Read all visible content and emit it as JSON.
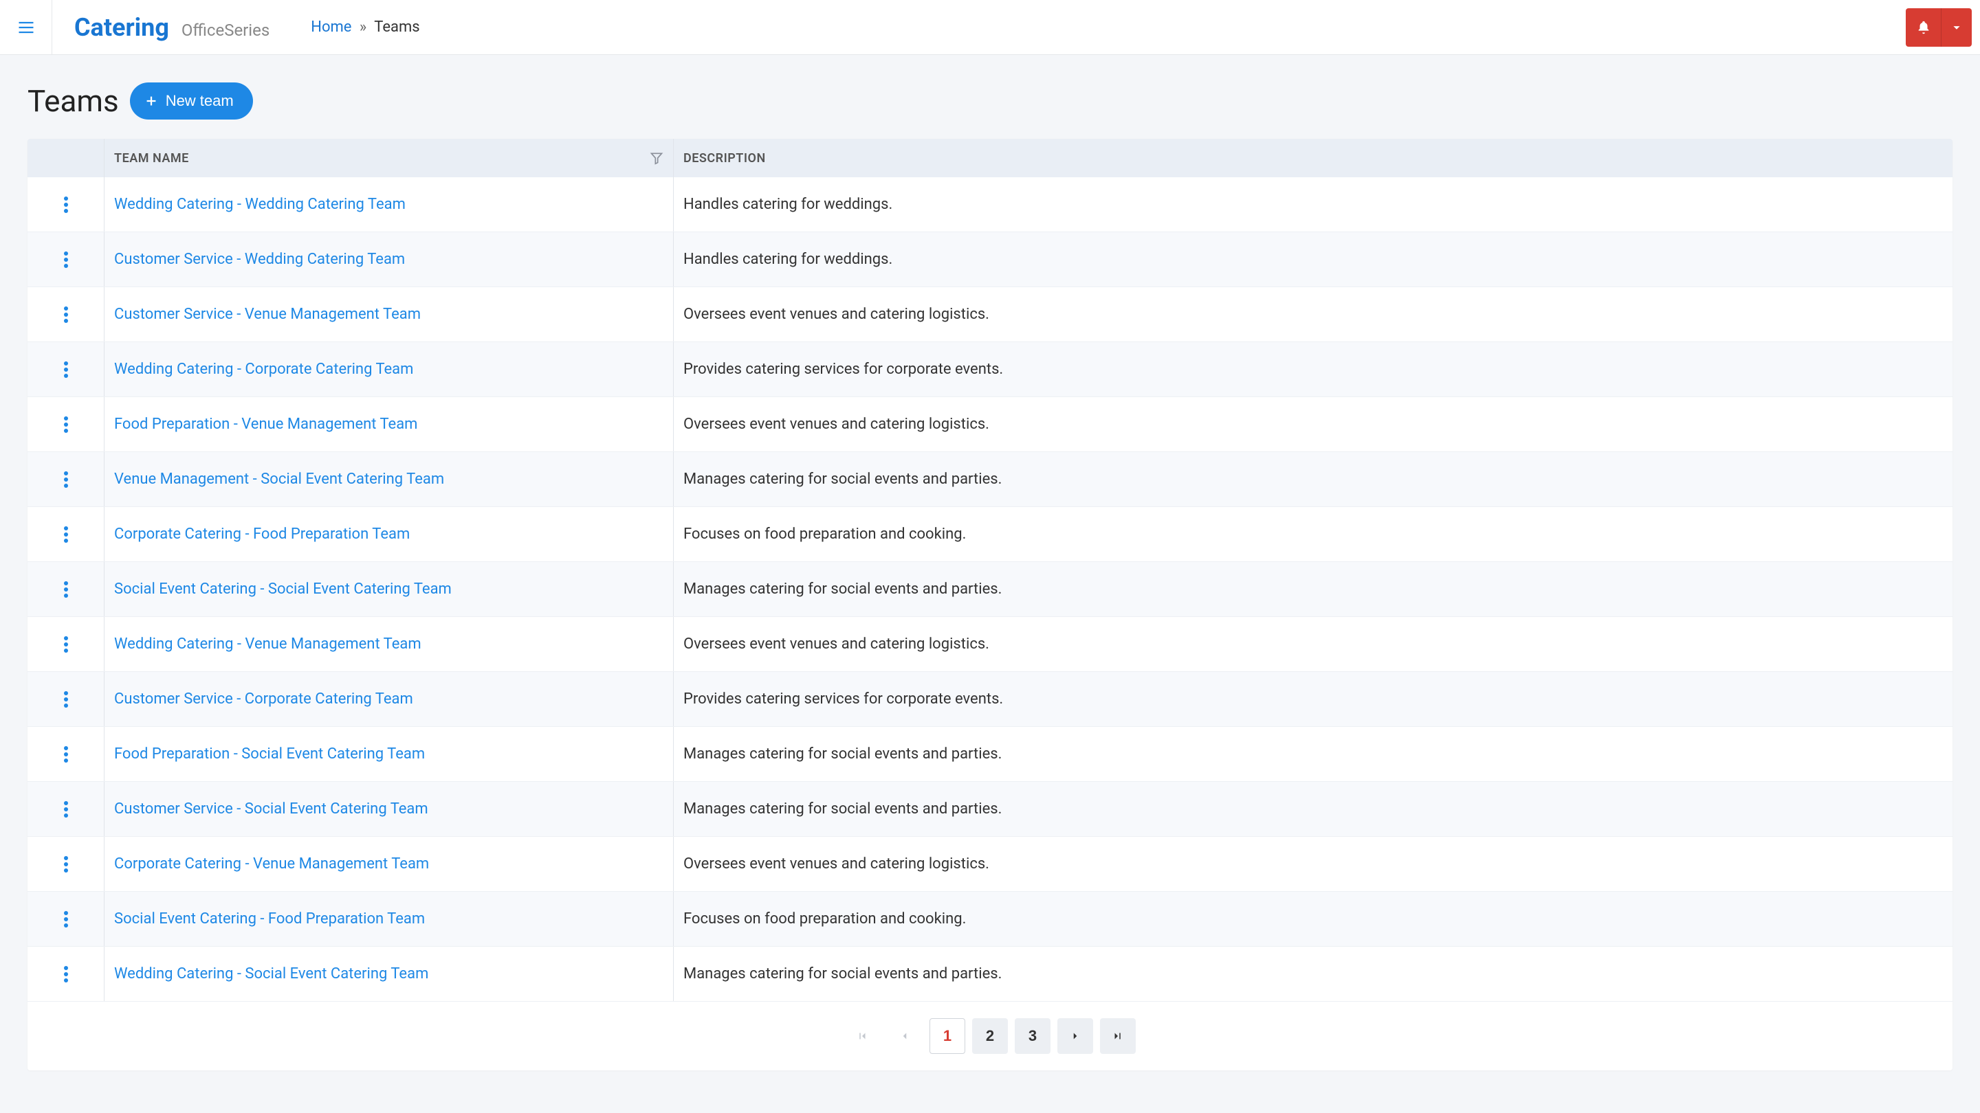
{
  "header": {
    "brand_title": "Catering",
    "brand_subtitle": "OfficeSeries",
    "breadcrumb_home": "Home",
    "breadcrumb_separator": "»",
    "breadcrumb_current": "Teams"
  },
  "page": {
    "title": "Teams",
    "new_button_label": "New team"
  },
  "table": {
    "columns": {
      "name": "Team Name",
      "description": "Description"
    },
    "rows": [
      {
        "name": "Wedding Catering - Wedding Catering Team",
        "description": "Handles catering for weddings."
      },
      {
        "name": "Customer Service - Wedding Catering Team",
        "description": "Handles catering for weddings."
      },
      {
        "name": "Customer Service - Venue Management Team",
        "description": "Oversees event venues and catering logistics."
      },
      {
        "name": "Wedding Catering - Corporate Catering Team",
        "description": "Provides catering services for corporate events."
      },
      {
        "name": "Food Preparation - Venue Management Team",
        "description": "Oversees event venues and catering logistics."
      },
      {
        "name": "Venue Management - Social Event Catering Team",
        "description": "Manages catering for social events and parties."
      },
      {
        "name": "Corporate Catering - Food Preparation Team",
        "description": "Focuses on food preparation and cooking."
      },
      {
        "name": "Social Event Catering - Social Event Catering Team",
        "description": "Manages catering for social events and parties."
      },
      {
        "name": "Wedding Catering - Venue Management Team",
        "description": "Oversees event venues and catering logistics."
      },
      {
        "name": "Customer Service - Corporate Catering Team",
        "description": "Provides catering services for corporate events."
      },
      {
        "name": "Food Preparation - Social Event Catering Team",
        "description": "Manages catering for social events and parties."
      },
      {
        "name": "Customer Service - Social Event Catering Team",
        "description": "Manages catering for social events and parties."
      },
      {
        "name": "Corporate Catering - Venue Management Team",
        "description": "Oversees event venues and catering logistics."
      },
      {
        "name": "Social Event Catering - Food Preparation Team",
        "description": "Focuses on food preparation and cooking."
      },
      {
        "name": "Wedding Catering - Social Event Catering Team",
        "description": "Manages catering for social events and parties."
      }
    ]
  },
  "pagination": {
    "pages": [
      "1",
      "2",
      "3"
    ],
    "current": "1"
  },
  "colors": {
    "primary": "#1e88e5",
    "danger": "#d73c32",
    "header_bg": "#e9eef5",
    "row_alt": "#f7f9fc",
    "page_bg": "#f4f6f9"
  }
}
